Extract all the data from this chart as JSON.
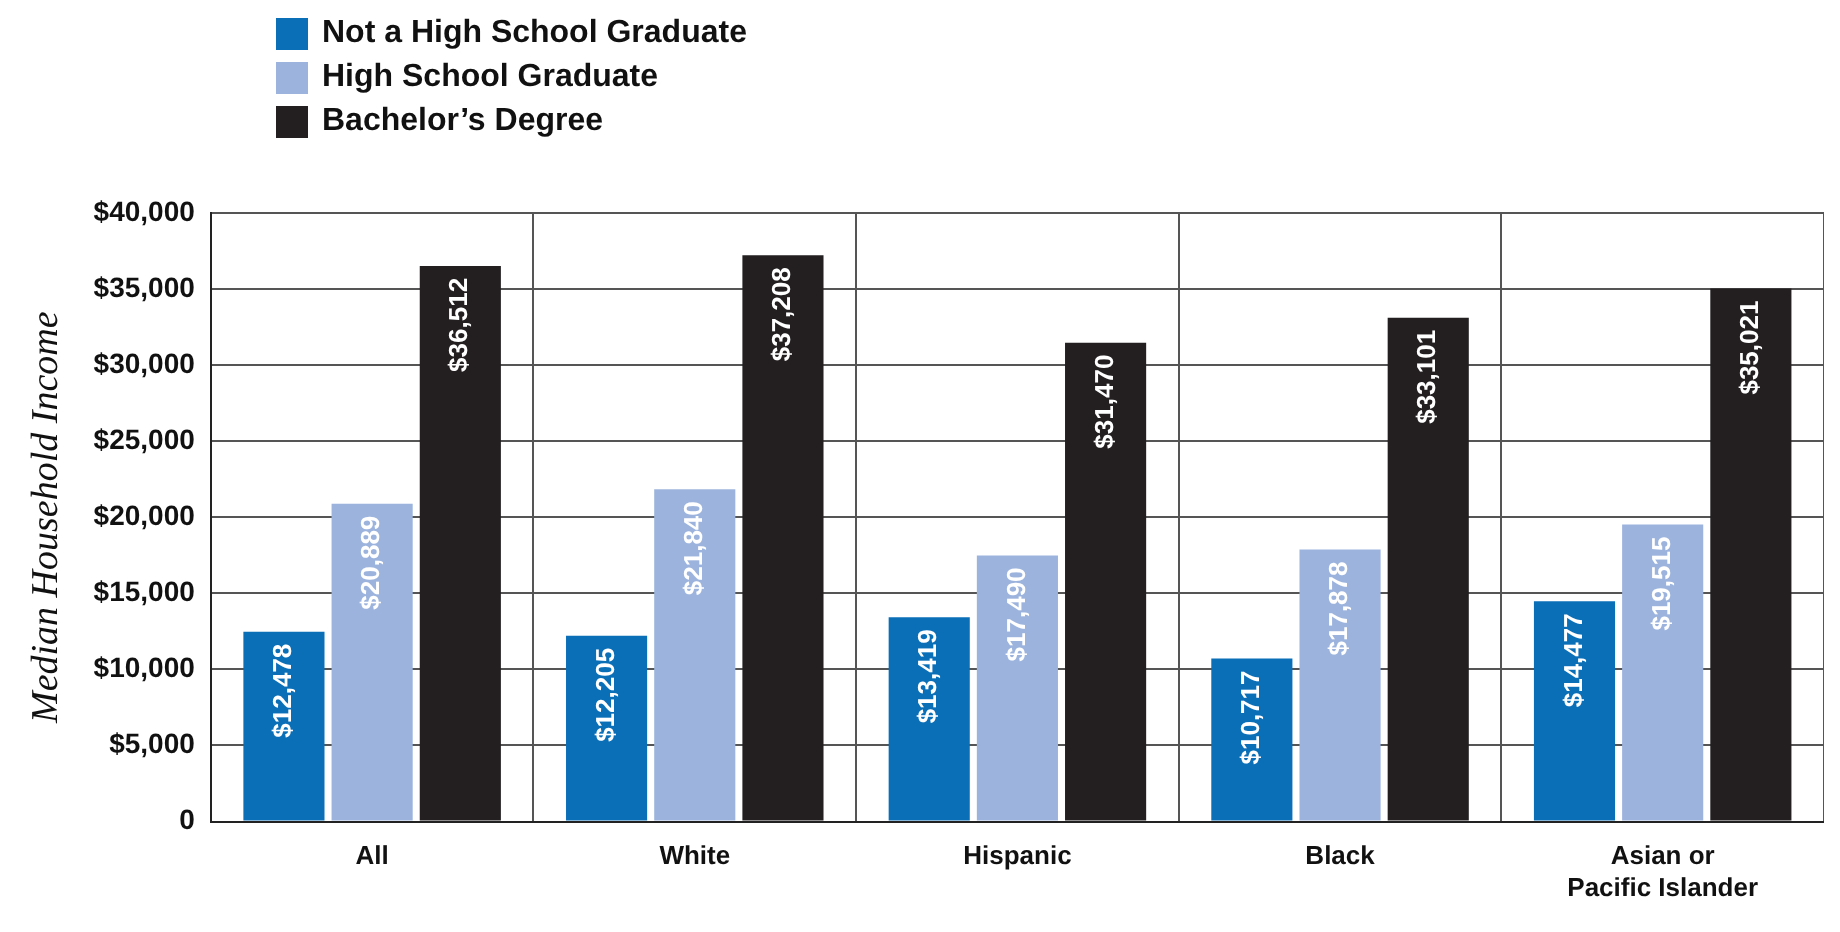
{
  "chart_data": {
    "type": "bar",
    "ylabel": "Median Household Income",
    "categories": [
      "All",
      "White",
      "Hispanic",
      "Black",
      "Asian or Pacific Islander"
    ],
    "series": [
      {
        "name": "Not a High School Graduate",
        "color": "#0b6fb8",
        "values": [
          12478,
          12205,
          13419,
          10717,
          14477
        ],
        "value_labels": [
          "$12,478",
          "$12,205",
          "$13,419",
          "$10,717",
          "$14,477"
        ]
      },
      {
        "name": "High School Graduate",
        "color": "#9cb4dd",
        "values": [
          20889,
          21840,
          17490,
          17878,
          19515
        ],
        "value_labels": [
          "$20,889",
          "$21,840",
          "$17,490",
          "$17,878",
          "$19,515"
        ]
      },
      {
        "name": "Bachelor’s Degree",
        "color": "#231f20",
        "values": [
          36512,
          37208,
          31470,
          33101,
          35021
        ],
        "value_labels": [
          "$36,512",
          "$37,208",
          "$31,470",
          "$33,101",
          "$35,021"
        ]
      }
    ],
    "ylim": [
      0,
      40000
    ],
    "yticks": [
      {
        "value": 0,
        "label": "0"
      },
      {
        "value": 5000,
        "label": "$5,000"
      },
      {
        "value": 10000,
        "label": "$10,000"
      },
      {
        "value": 15000,
        "label": "$15,000"
      },
      {
        "value": 20000,
        "label": "$20,000"
      },
      {
        "value": 25000,
        "label": "$25,000"
      },
      {
        "value": 30000,
        "label": "$30,000"
      },
      {
        "value": 35000,
        "label": "$35,000"
      },
      {
        "value": 40000,
        "label": "$40,000"
      }
    ],
    "grid": true,
    "legend": "top left"
  }
}
